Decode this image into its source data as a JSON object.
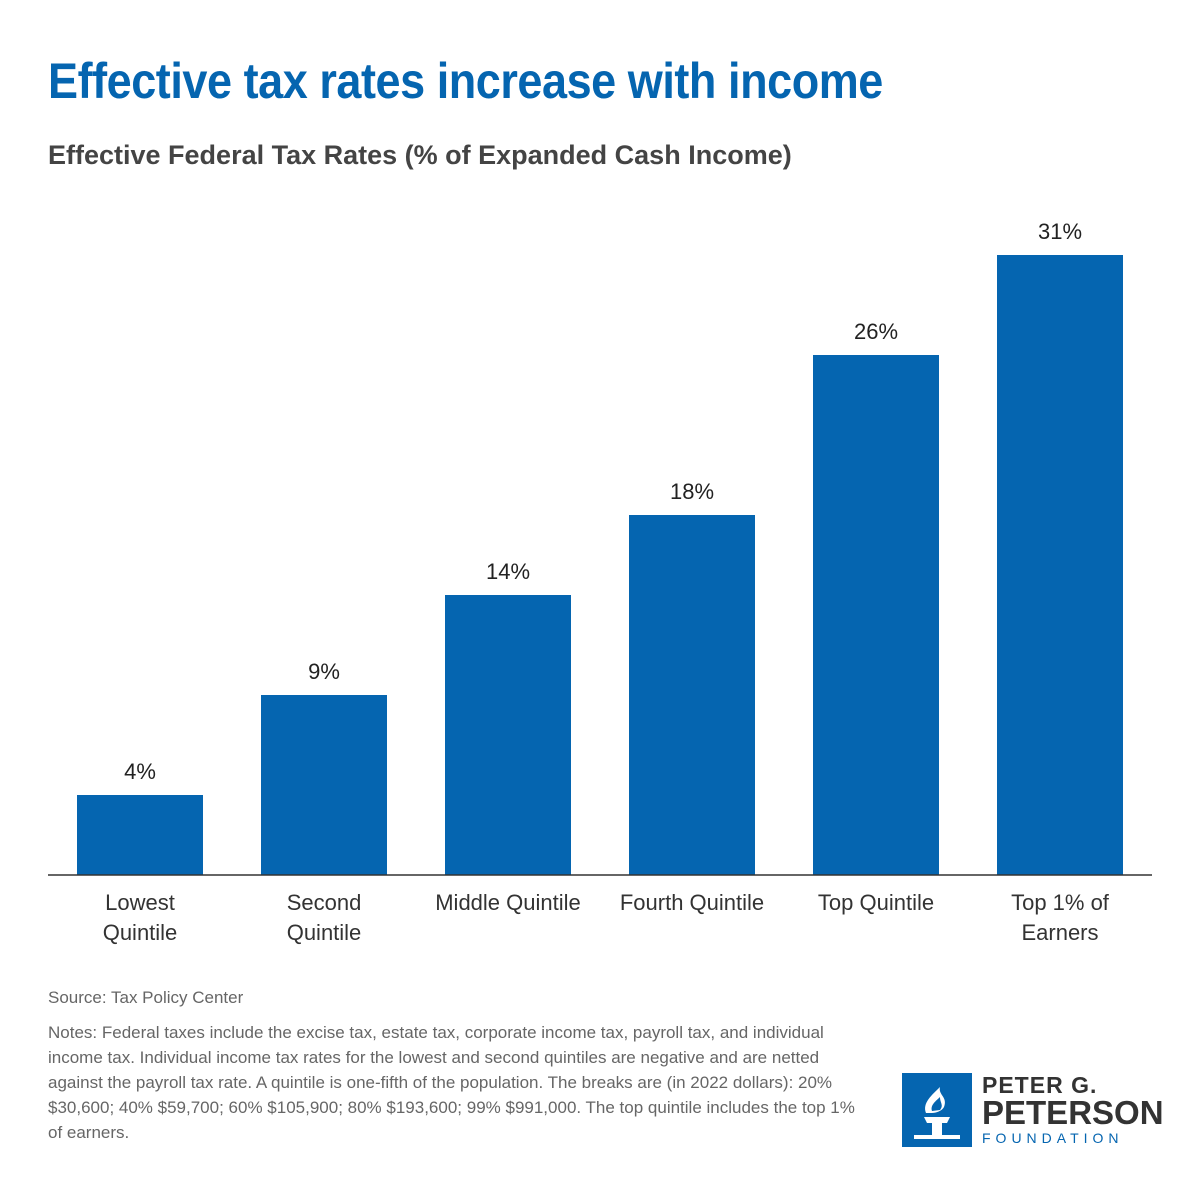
{
  "title": "Effective tax rates increase with income",
  "subtitle": "Effective Federal Tax Rates (% of Expanded Cash Income)",
  "chart_data": {
    "type": "bar",
    "title": "Effective Federal Tax Rates (% of Expanded Cash Income)",
    "categories": [
      [
        "Lowest",
        "Quintile"
      ],
      [
        "Second",
        "Quintile"
      ],
      [
        "Middle Quintile"
      ],
      [
        "Fourth Quintile"
      ],
      [
        "Top Quintile"
      ],
      [
        "Top 1% of",
        "Earners"
      ]
    ],
    "values": [
      4,
      9,
      14,
      18,
      26,
      31
    ],
    "data_labels": [
      "4%",
      "9%",
      "14%",
      "18%",
      "26%",
      "31%"
    ],
    "ylim": [
      0,
      31
    ],
    "grid": false,
    "bar_color": "#0565b0"
  },
  "source": "Source: Tax Policy Center",
  "notes": "Notes: Federal taxes include the excise tax, estate tax, corporate income tax, payroll tax, and individual income tax. Individual income tax rates for the lowest and second quintiles are negative and are netted against the payroll tax rate. A quintile is one-fifth of the population. The breaks are (in 2022 dollars): 20% $30,600; 40% $59,700; 60% $105,900; 80% $193,600; 99% $991,000. The top quintile includes the top 1% of earners.",
  "logo": {
    "line1": "PETER G.",
    "line2": "PETERSON",
    "line3": "FOUNDATION",
    "icon": "torch-icon",
    "color": "#0565b0"
  }
}
